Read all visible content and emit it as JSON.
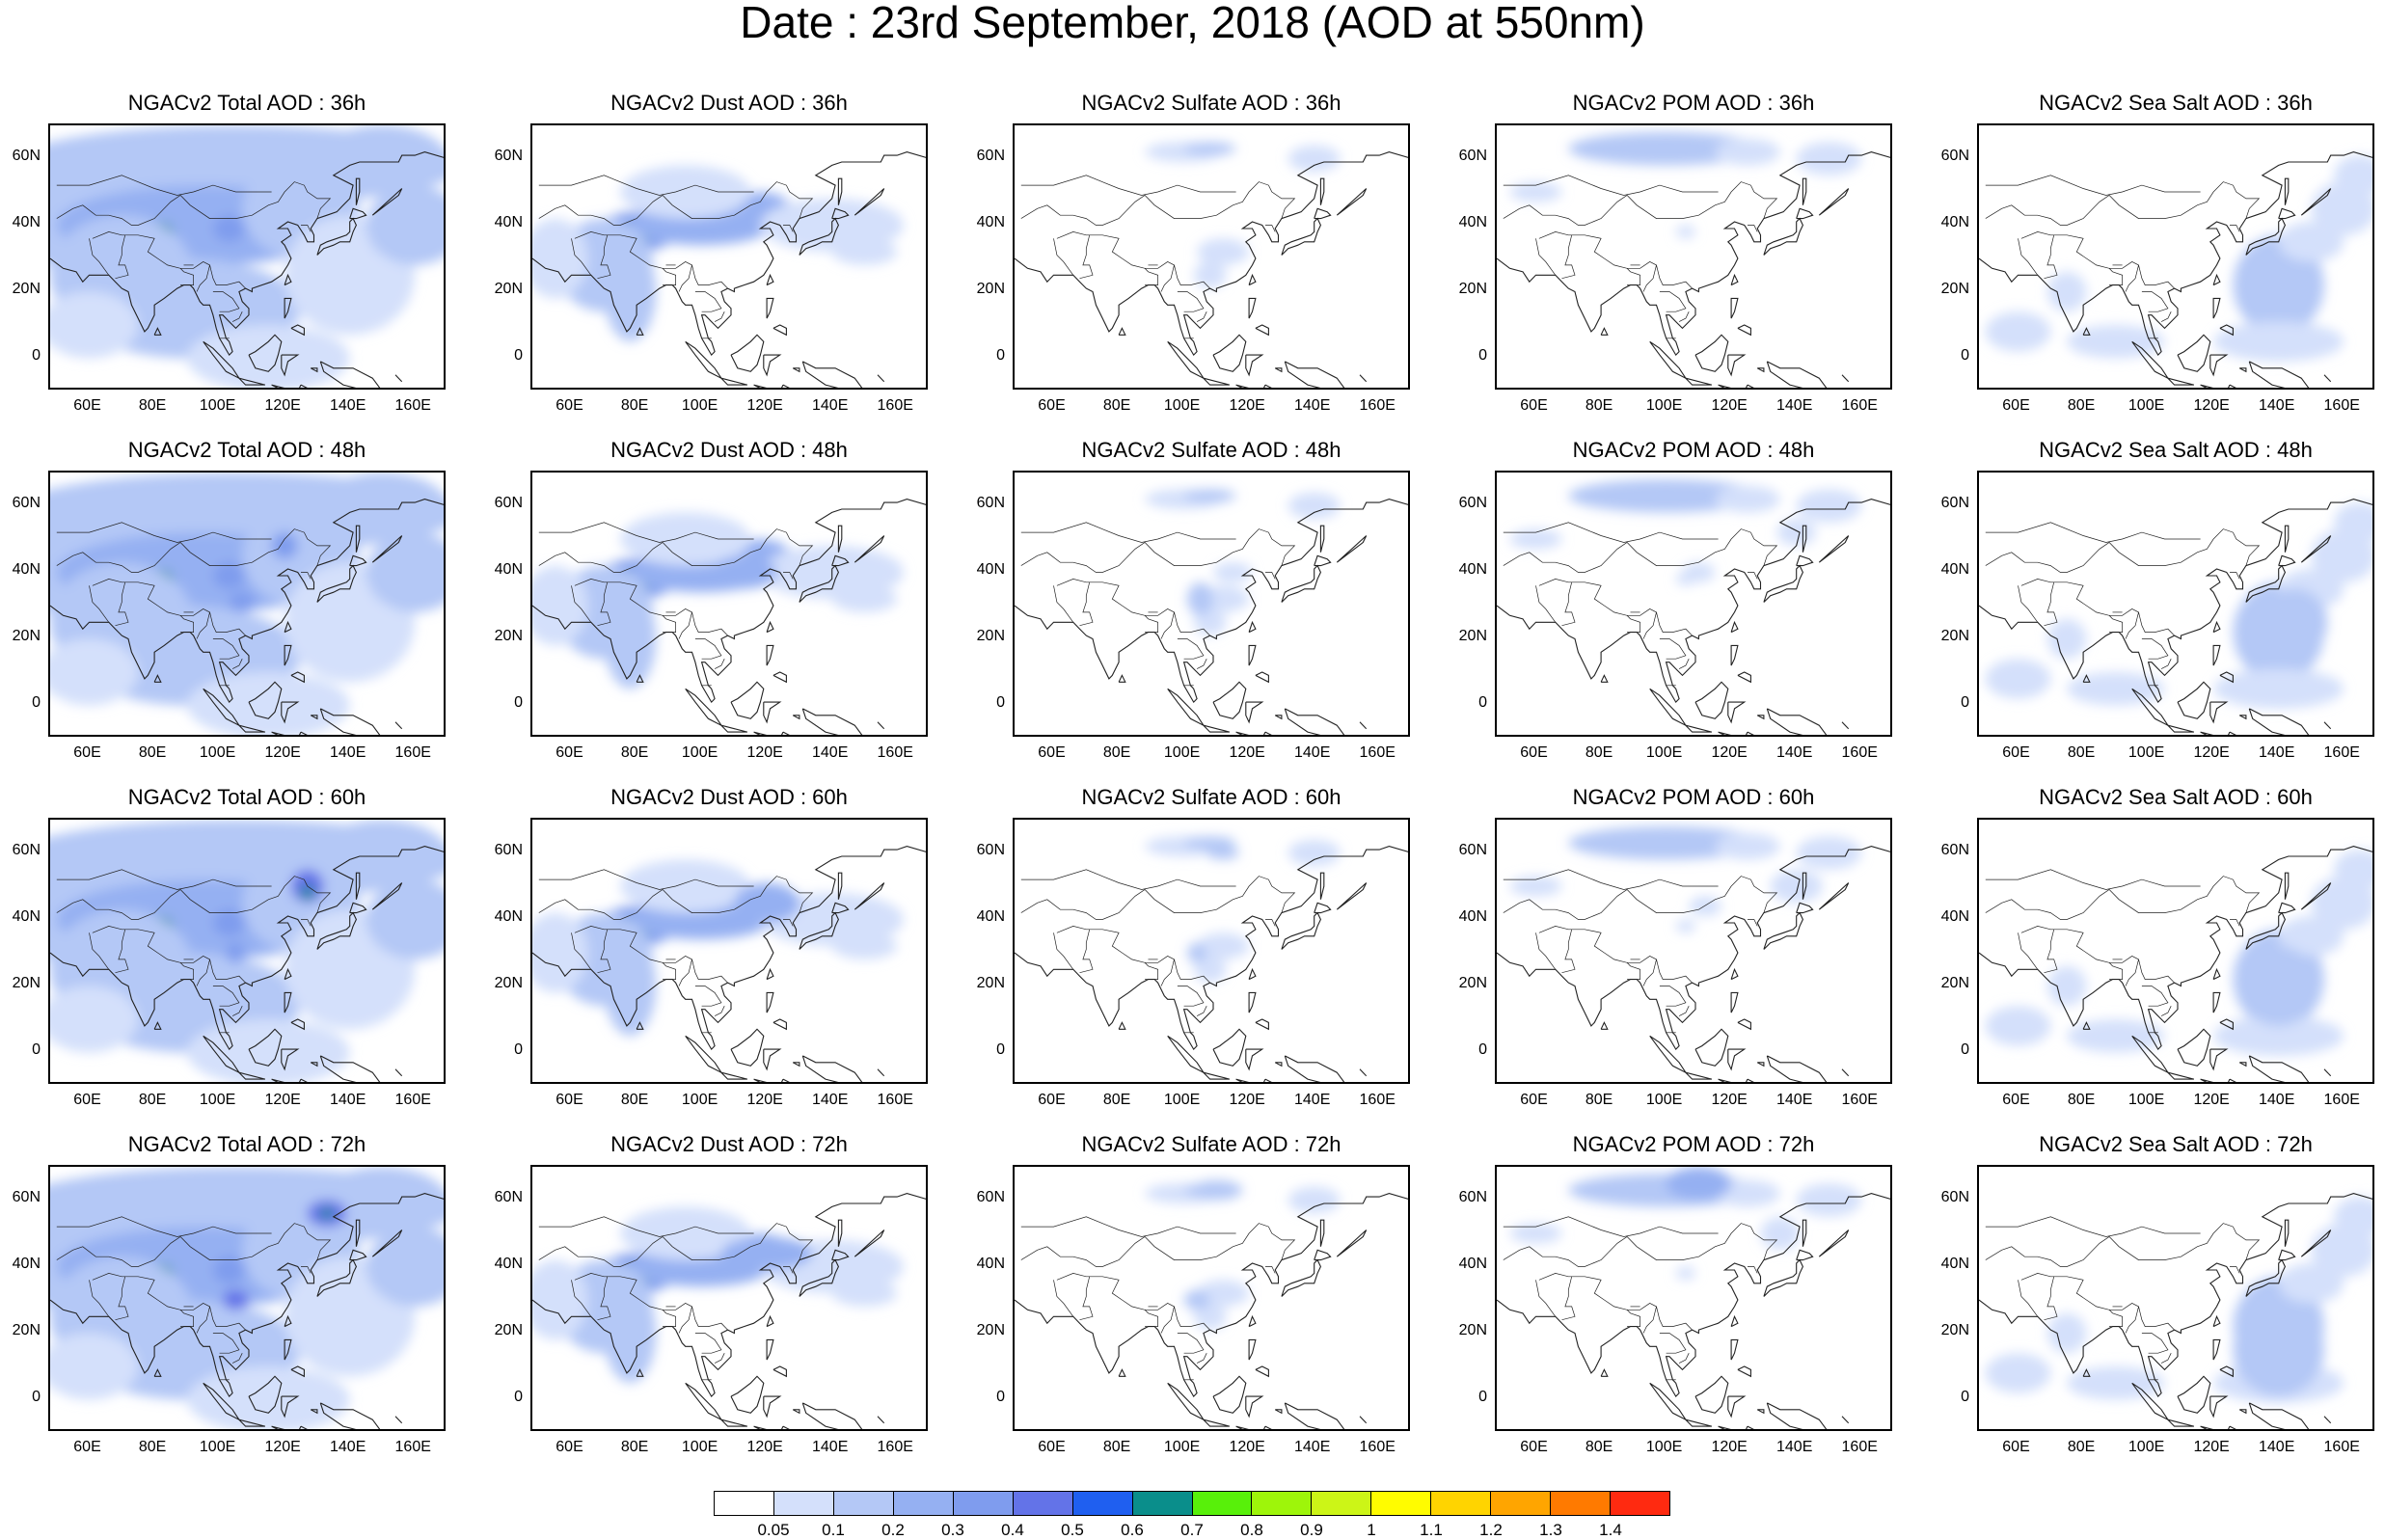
{
  "title": "Date : 23rd September, 2018 (AOD at 550nm)",
  "panels": [
    {
      "title": "NGACv2 Total AOD : 36h",
      "species": "total"
    },
    {
      "title": "NGACv2 Dust AOD : 36h",
      "species": "dust"
    },
    {
      "title": "NGACv2 Sulfate AOD : 36h",
      "species": "sulfate"
    },
    {
      "title": "NGACv2 POM AOD : 36h",
      "species": "pom"
    },
    {
      "title": "NGACv2 Sea Salt AOD : 36h",
      "species": "seasalt"
    },
    {
      "title": "NGACv2 Total AOD : 48h",
      "species": "total"
    },
    {
      "title": "NGACv2 Dust AOD : 48h",
      "species": "dust"
    },
    {
      "title": "NGACv2 Sulfate AOD : 48h",
      "species": "sulfate"
    },
    {
      "title": "NGACv2 POM AOD : 48h",
      "species": "pom"
    },
    {
      "title": "NGACv2 Sea Salt AOD : 48h",
      "species": "seasalt"
    },
    {
      "title": "NGACv2 Total AOD : 60h",
      "species": "total"
    },
    {
      "title": "NGACv2 Dust AOD : 60h",
      "species": "dust"
    },
    {
      "title": "NGACv2 Sulfate AOD : 60h",
      "species": "sulfate"
    },
    {
      "title": "NGACv2 POM AOD : 60h",
      "species": "pom"
    },
    {
      "title": "NGACv2 Sea Salt AOD : 60h",
      "species": "seasalt"
    },
    {
      "title": "NGACv2 Total AOD : 72h",
      "species": "total"
    },
    {
      "title": "NGACv2 Dust AOD : 72h",
      "species": "dust"
    },
    {
      "title": "NGACv2 Sulfate AOD : 72h",
      "species": "sulfate"
    },
    {
      "title": "NGACv2 POM AOD : 72h",
      "species": "pom"
    },
    {
      "title": "NGACv2 Sea Salt  AOD : 72h",
      "species": "seasalt"
    }
  ],
  "lat_ticks": [
    "60N",
    "40N",
    "20N",
    "0"
  ],
  "lon_ticks": [
    "60E",
    "80E",
    "100E",
    "120E",
    "140E",
    "160E"
  ],
  "colorbar": {
    "colors": [
      "#ffffff",
      "#d4e0fb",
      "#b4c8f6",
      "#95b0f2",
      "#7f9cee",
      "#6373e8",
      "#1f5ff0",
      "#0a8e8b",
      "#58f00a",
      "#9ef50a",
      "#ccf517",
      "#fffc00",
      "#ffd400",
      "#ffa500",
      "#ff7a00",
      "#ff2a10"
    ],
    "labels": [
      "0.05",
      "0.1",
      "0.2",
      "0.3",
      "0.4",
      "0.5",
      "0.6",
      "0.7",
      "0.8",
      "0.9",
      "1",
      "1.1",
      "1.2",
      "1.3",
      "1.4"
    ]
  }
}
